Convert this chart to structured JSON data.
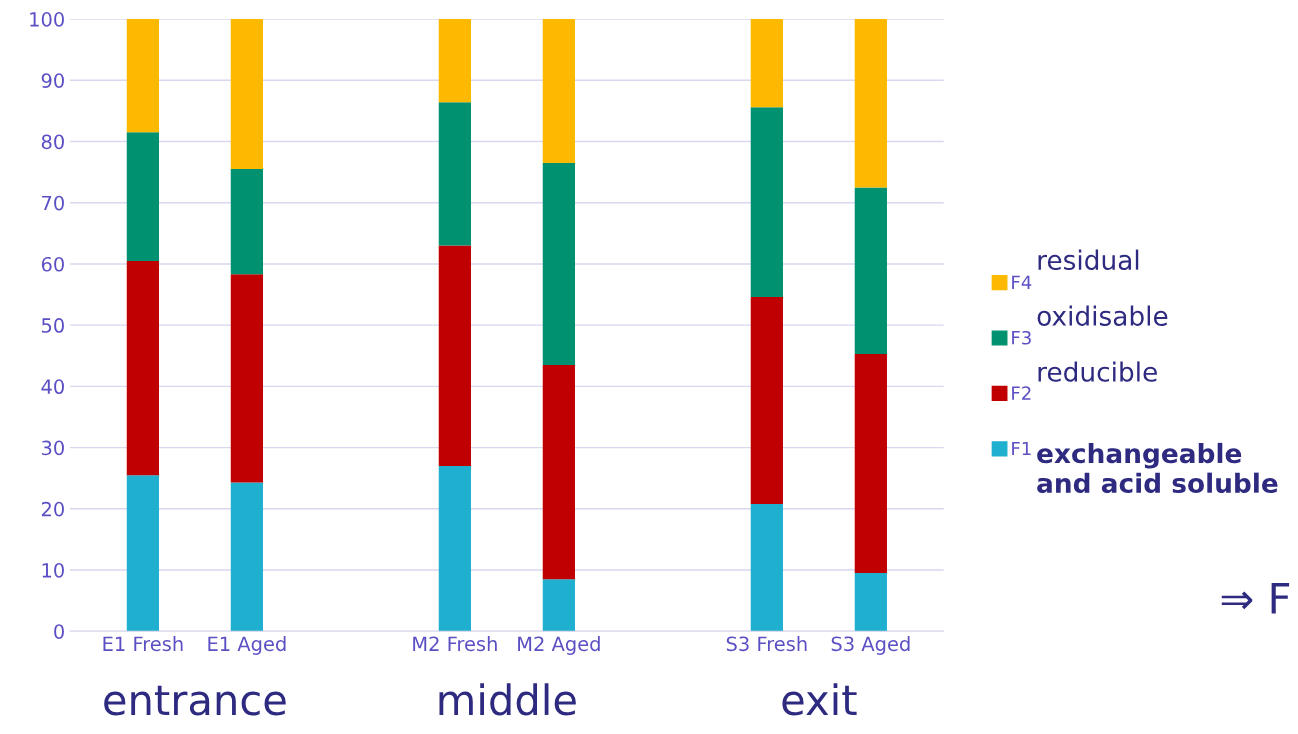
{
  "chart_data": {
    "type": "bar",
    "stacked": true,
    "categories": [
      "E1 Fresh",
      "E1 Aged",
      null,
      "M2 Fresh",
      "M2 Aged",
      null,
      "S3 Fresh",
      "S3 Aged"
    ],
    "series": [
      {
        "name": "F1",
        "color": "#1fb0d0",
        "values": [
          25.5,
          24.3,
          null,
          27,
          8.5,
          null,
          20.8,
          9.5
        ]
      },
      {
        "name": "F2",
        "color": "#c00000",
        "values": [
          35,
          34,
          null,
          36,
          35,
          null,
          33.8,
          35.8
        ]
      },
      {
        "name": "F3",
        "color": "#009270",
        "values": [
          21,
          17.2,
          null,
          23.4,
          33,
          null,
          31,
          27.2
        ]
      },
      {
        "name": "F4",
        "color": "#fcb900",
        "values": [
          18.5,
          24.5,
          null,
          13.6,
          23.5,
          null,
          14.4,
          27.5
        ]
      }
    ],
    "ylim": [
      0,
      100
    ],
    "yticks": [
      0,
      10,
      20,
      30,
      40,
      50,
      60,
      70,
      80,
      90,
      100
    ],
    "grid": "y",
    "legend": "right",
    "annotations": [
      "exchangeable\nand acid soluble",
      "reducible",
      "oxidisable",
      "residual",
      "entrance",
      "middle",
      "exit",
      "⇒ F"
    ]
  }
}
